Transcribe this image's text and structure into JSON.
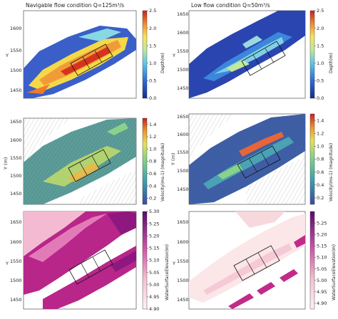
{
  "figure": {
    "title_left": "Navigable flow condition Q=125m³/s",
    "title_right": "Low flow condition Q=50m³/s"
  },
  "chart_data": [
    {
      "type": "heatmap",
      "row": 0,
      "col": 0,
      "ylabel": "Y",
      "yticks": [
        "1600",
        "1550",
        "1500",
        "1450"
      ],
      "colorbar": {
        "label": "Depth(m)",
        "ticks": [
          "2.5",
          "2.0",
          "1.5",
          "1.0",
          "0.5",
          "0.0"
        ],
        "range": [
          0.0,
          2.5
        ],
        "scale": "jet"
      }
    },
    {
      "type": "heatmap",
      "row": 0,
      "col": 1,
      "ylabel": "Y",
      "yticks": [
        "1650",
        "1600",
        "1550",
        "1500",
        "1450"
      ],
      "colorbar": {
        "label": "Depth(m)",
        "ticks": [
          "2.5",
          "2.0",
          "1.5",
          "1.0",
          "0.5",
          "0.0"
        ],
        "range": [
          0.0,
          2.5
        ],
        "scale": "jet"
      }
    },
    {
      "type": "heatmap",
      "row": 1,
      "col": 0,
      "ylabel": "Y (m)",
      "yticks": [
        "1650",
        "1600",
        "1550",
        "1500",
        "1450"
      ],
      "colorbar": {
        "label": "Velocity(ms-1) (magnitude)",
        "ticks": [
          "1.4",
          "1.2",
          "1.0",
          "0.8",
          "0.6",
          "0.4",
          "0.2"
        ],
        "range": [
          0.1,
          1.5
        ],
        "scale": "viridis-red"
      }
    },
    {
      "type": "heatmap",
      "row": 1,
      "col": 1,
      "ylabel": "Y (m)",
      "yticks": [
        "1650",
        "1600",
        "1550",
        "1500",
        "1450"
      ],
      "colorbar": {
        "label": "Velocity(ms-1) (magnitude)",
        "ticks": [
          "1.4",
          "1.2",
          "1.0",
          "0.8",
          "0.6",
          "0.4",
          "0.2"
        ],
        "range": [
          0.1,
          1.5
        ],
        "scale": "viridis-red"
      }
    },
    {
      "type": "heatmap",
      "row": 2,
      "col": 0,
      "ylabel": "Y",
      "yticks": [
        "1650",
        "1600",
        "1550",
        "1500",
        "1450"
      ],
      "colorbar": {
        "label": "WaterSurfaceElevation(m)",
        "ticks": [
          "5.30",
          "5.25",
          "5.20",
          "5.15",
          "5.10",
          "5.05",
          "5.00",
          "4.95",
          "4.90"
        ],
        "range": [
          4.9,
          5.3
        ],
        "scale": "purple"
      }
    },
    {
      "type": "heatmap",
      "row": 2,
      "col": 1,
      "ylabel": "Y",
      "yticks": [
        "1650",
        "1600",
        "1550",
        "1500",
        "1450"
      ],
      "colorbar": {
        "label": "WaterSurfaceElevation(m)",
        "ticks": [
          "5.25",
          "5.20",
          "5.15",
          "5.10",
          "5.05",
          "5.00",
          "4.95",
          "4.90"
        ],
        "range": [
          4.875,
          5.3
        ],
        "scale": "purple"
      }
    }
  ]
}
